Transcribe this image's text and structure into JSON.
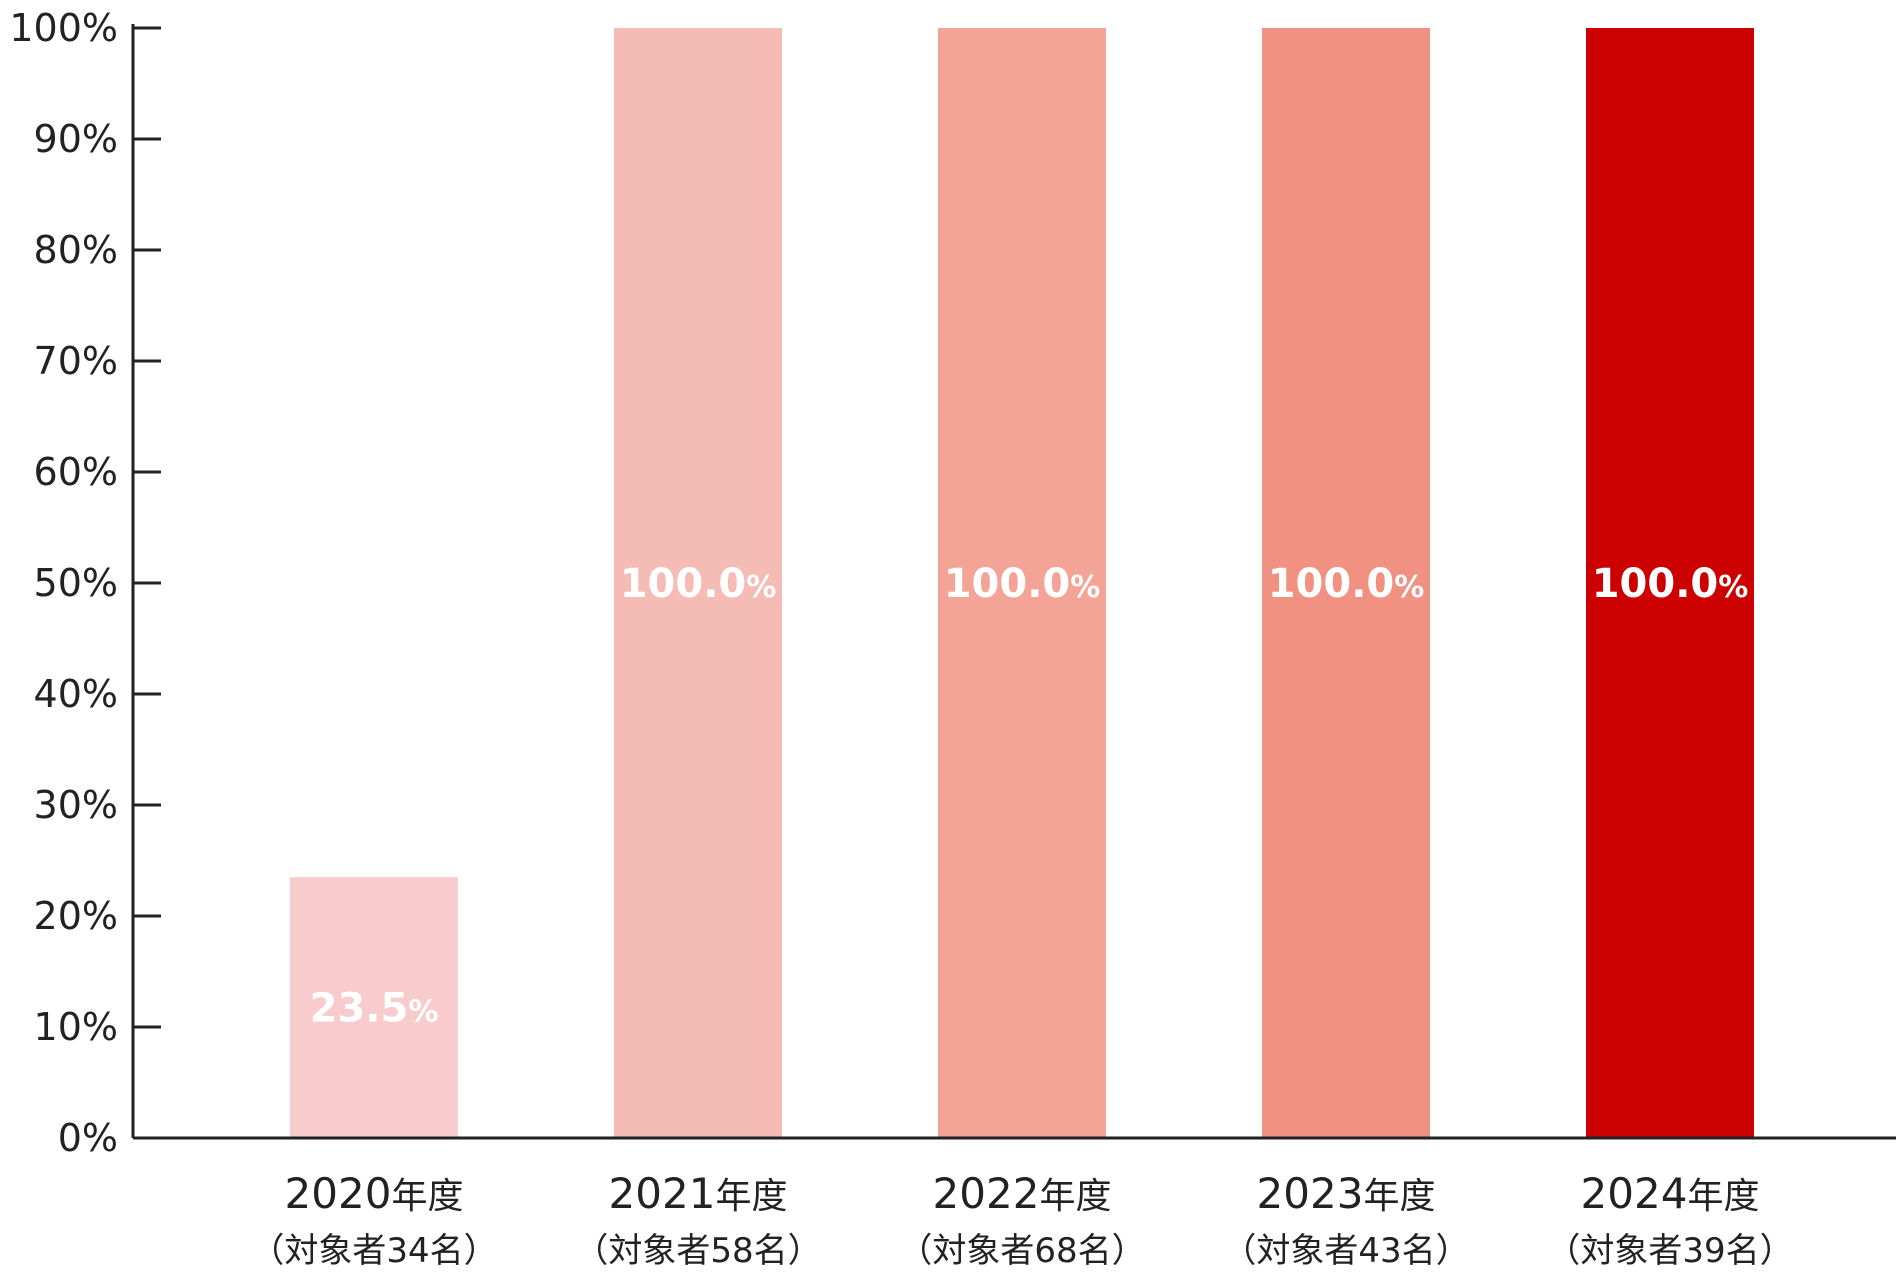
{
  "chart_data": {
    "type": "bar",
    "title": "",
    "xlabel": "",
    "ylabel": "",
    "ylim": [
      0,
      100
    ],
    "y_ticks": [
      {
        "value": 0,
        "label": "0%"
      },
      {
        "value": 10,
        "label": "10%"
      },
      {
        "value": 20,
        "label": "20%"
      },
      {
        "value": 30,
        "label": "30%"
      },
      {
        "value": 40,
        "label": "40%"
      },
      {
        "value": 50,
        "label": "50%"
      },
      {
        "value": 60,
        "label": "60%"
      },
      {
        "value": 70,
        "label": "70%"
      },
      {
        "value": 80,
        "label": "80%"
      },
      {
        "value": 90,
        "label": "90%"
      },
      {
        "value": 100,
        "label": "100%"
      }
    ],
    "categories": [
      {
        "year": "2020",
        "suffix": "年度",
        "sub": "（対象者34名）"
      },
      {
        "year": "2021",
        "suffix": "年度",
        "sub": "（対象者58名）"
      },
      {
        "year": "2022",
        "suffix": "年度",
        "sub": "（対象者68名）"
      },
      {
        "year": "2023",
        "suffix": "年度",
        "sub": "（対象者43名）"
      },
      {
        "year": "2024",
        "suffix": "年度",
        "sub": "（対象者39名）"
      }
    ],
    "values": [
      23.5,
      100.0,
      100.0,
      100.0,
      100.0
    ],
    "data_labels": [
      {
        "number": "23.5",
        "unit": "%"
      },
      {
        "number": "100.0",
        "unit": "%"
      },
      {
        "number": "100.0",
        "unit": "%"
      },
      {
        "number": "100.0",
        "unit": "%"
      },
      {
        "number": "100.0",
        "unit": "%"
      }
    ],
    "bar_colors": [
      "#f8cccd",
      "#f5bcb5",
      "#f4a497",
      "#f19182",
      "#cc0000"
    ],
    "axis_color": "#222222",
    "grid": false
  }
}
